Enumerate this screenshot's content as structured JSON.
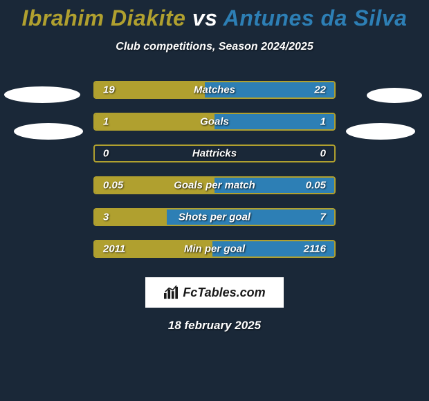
{
  "title": {
    "player1": "Ibrahim Diakite",
    "vs": "vs",
    "player2": "Antunes da Silva",
    "player1_color": "#b0a02f",
    "vs_color": "#ffffff",
    "player2_color": "#2d7fb5"
  },
  "subtitle": "Club competitions, Season 2024/2025",
  "chart": {
    "track_width": 350,
    "track_height": 26,
    "left_color": "#b0a02f",
    "right_color": "#2d7fb5",
    "track_border": "#b0a02f",
    "label_fontsize": 15,
    "value_fontsize": 15,
    "background": "#1a2838",
    "rows": [
      {
        "label": "Matches",
        "left_val": "19",
        "right_val": "22",
        "left_pct": 46,
        "right_pct": 54
      },
      {
        "label": "Goals",
        "left_val": "1",
        "right_val": "1",
        "left_pct": 50,
        "right_pct": 50
      },
      {
        "label": "Hattricks",
        "left_val": "0",
        "right_val": "0",
        "left_pct": 0,
        "right_pct": 0
      },
      {
        "label": "Goals per match",
        "left_val": "0.05",
        "right_val": "0.05",
        "left_pct": 50,
        "right_pct": 50
      },
      {
        "label": "Shots per goal",
        "left_val": "3",
        "right_val": "7",
        "left_pct": 30,
        "right_pct": 70
      },
      {
        "label": "Min per goal",
        "left_val": "2011",
        "right_val": "2116",
        "left_pct": 49,
        "right_pct": 51
      }
    ]
  },
  "logo": {
    "text": "FcTables.com"
  },
  "footer_date": "18 february 2025"
}
